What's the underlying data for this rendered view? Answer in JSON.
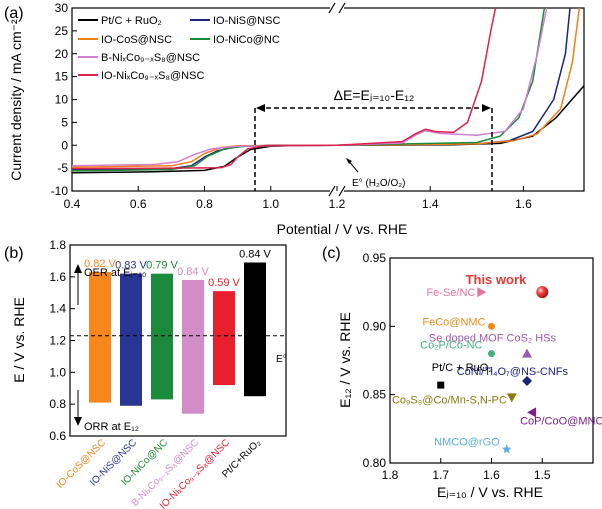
{
  "panels": {
    "a": "(a)",
    "b": "(b)",
    "c": "(c)"
  },
  "chart_data": [
    {
      "id": "a",
      "type": "line",
      "xlabel": "Potential / V vs. RHE",
      "ylabel": "Current density / mA cm⁻²",
      "xlim_left": [
        0.4,
        1.2
      ],
      "xlim_right": [
        1.2,
        1.73
      ],
      "ylim": [
        -10,
        30
      ],
      "xticks_left": [
        "0.4",
        "0.6",
        "0.8",
        "1.0",
        "1.2"
      ],
      "xticks_right": [
        "1.4",
        "1.6"
      ],
      "yticks": [
        "-10",
        "-5",
        "0",
        "5",
        "10",
        "15",
        "20",
        "25",
        "30"
      ],
      "annotation_delta": "ΔE=Eⱼ₌₁₀-E₁₂",
      "annotation_e0": "E° (H₂O/O₂)",
      "series": [
        {
          "name": "Pt/C + RuO₂",
          "color": "#000000",
          "orr": [
            [
              0.4,
              -6
            ],
            [
              0.65,
              -5.8
            ],
            [
              0.8,
              -5.5
            ],
            [
              0.86,
              -4.6
            ],
            [
              0.9,
              -2.6
            ],
            [
              0.94,
              -0.9
            ],
            [
              1.0,
              -0.2
            ],
            [
              1.1,
              0
            ],
            [
              1.2,
              0
            ]
          ],
          "oer": [
            [
              1.2,
              0
            ],
            [
              1.45,
              0.1
            ],
            [
              1.55,
              0.4
            ],
            [
              1.62,
              2
            ],
            [
              1.67,
              6
            ],
            [
              1.73,
              13
            ]
          ]
        },
        {
          "name": "IO-NiS@NSC",
          "color": "#1a237e",
          "orr": [
            [
              0.4,
              -5.3
            ],
            [
              0.7,
              -5.1
            ],
            [
              0.76,
              -4.5
            ],
            [
              0.8,
              -2.6
            ],
            [
              0.84,
              -1.2
            ],
            [
              0.9,
              -0.3
            ],
            [
              1.0,
              0
            ],
            [
              1.2,
              0
            ]
          ],
          "oer": [
            [
              1.2,
              0
            ],
            [
              1.5,
              0.3
            ],
            [
              1.57,
              1
            ],
            [
              1.62,
              3
            ],
            [
              1.665,
              10
            ],
            [
              1.69,
              20
            ],
            [
              1.7,
              30
            ]
          ]
        },
        {
          "name": "IO-CoS@NSC",
          "color": "#f57f17",
          "orr": [
            [
              0.4,
              -4.8
            ],
            [
              0.7,
              -4.5
            ],
            [
              0.76,
              -3.6
            ],
            [
              0.8,
              -1.8
            ],
            [
              0.85,
              -0.5
            ],
            [
              0.9,
              -0.1
            ],
            [
              1.2,
              0
            ]
          ],
          "oer": [
            [
              1.2,
              0
            ],
            [
              1.5,
              0.3
            ],
            [
              1.58,
              1
            ],
            [
              1.63,
              2.5
            ],
            [
              1.68,
              8
            ],
            [
              1.705,
              18
            ],
            [
              1.72,
              30
            ]
          ]
        },
        {
          "name": "IO-NiCo@NC",
          "color": "#1b8a3a",
          "orr": [
            [
              0.4,
              -5.6
            ],
            [
              0.7,
              -5.3
            ],
            [
              0.77,
              -4.5
            ],
            [
              0.81,
              -2.4
            ],
            [
              0.86,
              -0.8
            ],
            [
              0.92,
              -0.2
            ],
            [
              1.2,
              0
            ]
          ],
          "oer": [
            [
              1.2,
              0
            ],
            [
              1.5,
              0.6
            ],
            [
              1.55,
              2
            ],
            [
              1.59,
              6
            ],
            [
              1.62,
              14
            ],
            [
              1.645,
              30
            ]
          ]
        },
        {
          "name": "B-NiₓCo₉₋ₓS₈@NSC",
          "color": "#d27fd0",
          "orr": [
            [
              0.4,
              -4.5
            ],
            [
              0.65,
              -4.2
            ],
            [
              0.72,
              -3.6
            ],
            [
              0.77,
              -2
            ],
            [
              0.82,
              -0.8
            ],
            [
              0.9,
              -0.2
            ],
            [
              1.2,
              0
            ]
          ],
          "oer": [
            [
              1.2,
              0
            ],
            [
              1.34,
              0.5
            ],
            [
              1.37,
              2.3
            ],
            [
              1.39,
              3.2
            ],
            [
              1.42,
              2.6
            ],
            [
              1.5,
              2.2
            ],
            [
              1.56,
              3
            ],
            [
              1.6,
              8
            ],
            [
              1.63,
              20
            ],
            [
              1.65,
              30
            ]
          ]
        },
        {
          "name": "IO-NiₓCo₉₋ₓS₈@NSC",
          "color": "#e0204f",
          "orr": [
            [
              0.4,
              -5.1
            ],
            [
              0.7,
              -5
            ],
            [
              0.85,
              -4.9
            ],
            [
              0.88,
              -4.2
            ],
            [
              0.9,
              -2.6
            ],
            [
              0.93,
              -0.8
            ],
            [
              0.98,
              -0.1
            ],
            [
              1.2,
              0
            ]
          ],
          "oer": [
            [
              1.2,
              0
            ],
            [
              1.34,
              0.8
            ],
            [
              1.37,
              2.6
            ],
            [
              1.39,
              3.5
            ],
            [
              1.41,
              3
            ],
            [
              1.45,
              2.8
            ],
            [
              1.48,
              5
            ],
            [
              1.51,
              14
            ],
            [
              1.53,
              25
            ],
            [
              1.54,
              30
            ]
          ]
        }
      ]
    },
    {
      "id": "b",
      "type": "bar",
      "ylabel": "E / V vs. RHE",
      "ylim": [
        0.6,
        1.8
      ],
      "yticks": [
        "0.6",
        "0.8",
        "1.0",
        "1.2",
        "1.4",
        "1.6",
        "1.8"
      ],
      "e0_label": "E°",
      "e0_value": 1.23,
      "oer_label": "OER at Eⱼ₌₁₀",
      "orr_label": "ORR at E₁₂",
      "categories": [
        "IO-CoS@NSC",
        "IO-NiS@NSC",
        "IO-NiCo@NC",
        "B-NiₓCo₉₋ₓS₈@NSC",
        "IO-NiₓCo₉₋ₓS₈@NSC",
        "Pt/C+RuO₂"
      ],
      "top": [
        1.63,
        1.62,
        1.62,
        1.58,
        1.51,
        1.69
      ],
      "bottom": [
        0.81,
        0.79,
        0.83,
        0.74,
        0.92,
        0.85
      ],
      "delta_labels": [
        "0.82 V",
        "0.83 V",
        "0.79 V",
        "0.84 V",
        "0.59 V",
        "0.84 V"
      ],
      "colors": [
        "#f7861c",
        "#283593",
        "#1b8a3a",
        "#d28cc8",
        "#e8202e",
        "#000000"
      ]
    },
    {
      "id": "c",
      "type": "scatter",
      "xlabel": "Eⱼ₌₁₀ / V vs. RHE",
      "ylabel": "E₁₂ / V vs. RHE",
      "xlim": [
        1.8,
        1.4
      ],
      "ylim": [
        0.8,
        0.95
      ],
      "xticks": [
        "1.8",
        "1.7",
        "1.6",
        "1.5"
      ],
      "yticks": [
        "0.80",
        "0.85",
        "0.90",
        "0.95"
      ],
      "points": [
        {
          "label": "This work",
          "x": 1.5,
          "y": 0.925,
          "color": "#e53935",
          "marker": "sphere"
        },
        {
          "label": "Fe-Se/NC",
          "x": 1.62,
          "y": 0.925,
          "color": "#e5739b",
          "marker": "triangle-right"
        },
        {
          "label": "FeCo@NMC",
          "x": 1.6,
          "y": 0.9,
          "color": "#ef8a1a",
          "marker": "circle"
        },
        {
          "label": "Se doped MOF CoS₂ HSs",
          "x": 1.53,
          "y": 0.88,
          "color": "#9b59b6",
          "marker": "triangle-up"
        },
        {
          "label": "Co₂P/Co-NC",
          "x": 1.6,
          "y": 0.88,
          "color": "#3fb27f",
          "marker": "circle"
        },
        {
          "label": "CoNi/Ti₄O₇@NS-CNFs",
          "x": 1.53,
          "y": 0.86,
          "color": "#1a237e",
          "marker": "diamond"
        },
        {
          "label": "Pt/C + RuO₂",
          "x": 1.7,
          "y": 0.857,
          "color": "#000000",
          "marker": "square"
        },
        {
          "label": "Co₉S₈@Co/Mn-S,N-PC",
          "x": 1.56,
          "y": 0.848,
          "color": "#8a7a10",
          "marker": "triangle-down"
        },
        {
          "label": "CoP/CoO@MNC-CNT",
          "x": 1.52,
          "y": 0.837,
          "color": "#7b1f8a",
          "marker": "triangle-left"
        },
        {
          "label": "NMCO@rGO",
          "x": 1.57,
          "y": 0.81,
          "color": "#5aaee0",
          "marker": "star"
        }
      ]
    }
  ]
}
